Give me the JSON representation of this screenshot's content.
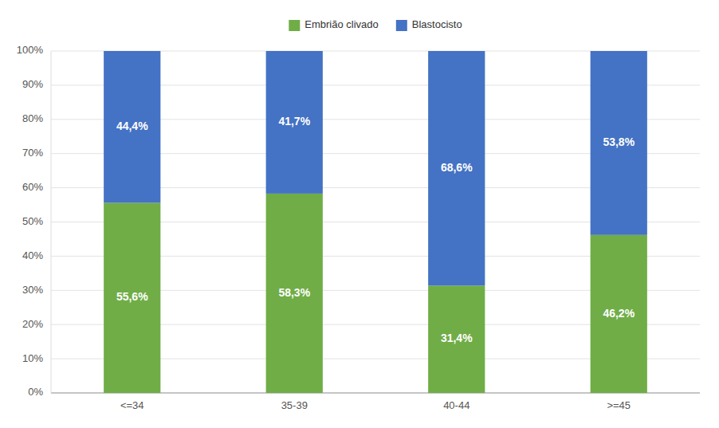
{
  "chart_data": {
    "type": "bar",
    "stacked": true,
    "categories": [
      "<=34",
      "35-39",
      "40-44",
      ">=45"
    ],
    "series": [
      {
        "name": "Embrião clivado",
        "color": "#70AD47",
        "values": [
          55.6,
          58.3,
          31.4,
          46.2
        ],
        "value_labels": [
          "55,6%",
          "58,3%",
          "31,4%",
          "46,2%"
        ]
      },
      {
        "name": "Blastocisto",
        "color": "#4472C4",
        "values": [
          44.4,
          41.7,
          68.6,
          53.8
        ],
        "value_labels": [
          "44,4%",
          "41,7%",
          "68,6%",
          "53,8%"
        ]
      }
    ],
    "data_labels": true,
    "ylim": [
      0,
      100
    ],
    "yticks": [
      {
        "value": 0,
        "label": "0%"
      },
      {
        "value": 10,
        "label": "10%"
      },
      {
        "value": 20,
        "label": "20%"
      },
      {
        "value": 30,
        "label": "30%"
      },
      {
        "value": 40,
        "label": "40%"
      },
      {
        "value": 50,
        "label": "50%"
      },
      {
        "value": 60,
        "label": "60%"
      },
      {
        "value": 70,
        "label": "70%"
      },
      {
        "value": 80,
        "label": "80%"
      },
      {
        "value": 90,
        "label": "90%"
      },
      {
        "value": 100,
        "label": "100%"
      }
    ],
    "grid": true,
    "legend": "top"
  }
}
